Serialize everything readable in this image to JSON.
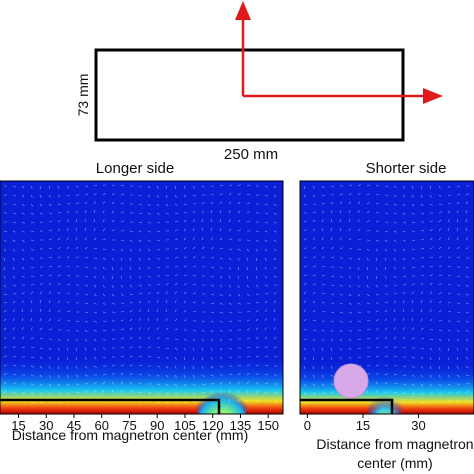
{
  "diagram": {
    "width_label": "250 mm",
    "height_label": "73 mm"
  },
  "panels": {
    "left_title": "Longer side",
    "right_title": "Shorter side"
  },
  "axes": {
    "left_xlabel": "Distance from magnetron center (mm)",
    "right_xlabel_line1": "Distance from magnetron",
    "right_xlabel_line2": "center (mm)"
  },
  "colors": {
    "background_field": "#0a1fd6",
    "arrow": "#e01a1a",
    "magnet_outline": "#000000",
    "circle": "#d8a8e8"
  },
  "chart_data": [
    {
      "type": "heatmap",
      "title": "Longer side",
      "xlabel": "Distance from magnetron center (mm)",
      "ylabel": "",
      "x_ticks": [
        15,
        30,
        45,
        60,
        75,
        90,
        105,
        120,
        135,
        150
      ],
      "xlim": [
        5,
        158
      ],
      "magnet_extent_mm": 125,
      "grid": false,
      "legend": "none"
    },
    {
      "type": "heatmap",
      "title": "Shorter side",
      "xlabel": "Distance from magnetron center (mm)",
      "ylabel": "",
      "x_ticks": [
        0,
        15,
        30
      ],
      "xlim": [
        -2,
        45
      ],
      "magnet_extent_mm": 36.5,
      "grid": false,
      "legend": "none"
    }
  ]
}
